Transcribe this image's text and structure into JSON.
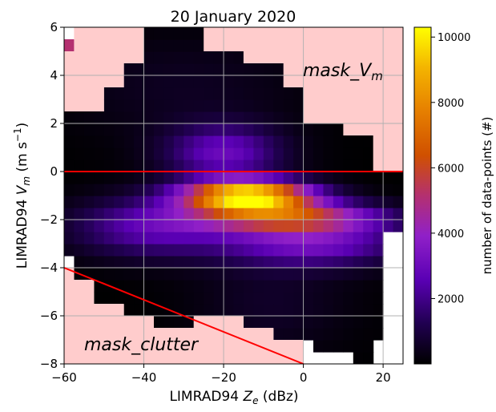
{
  "chart_data": {
    "type": "heatmap",
    "title": "20 January 2020",
    "xlabel_main": "LIMRAD94 ",
    "xlabel_sym": "Z",
    "xlabel_sub": "e",
    "xlabel_unit": " (dBz)",
    "ylabel_main": "LIMRAD94 ",
    "ylabel_sym": "V",
    "ylabel_sub": "m",
    "ylabel_unit_open": " (m s",
    "ylabel_unit_sup": "−1",
    "ylabel_unit_close": ")",
    "xlim": [
      -60,
      25
    ],
    "ylim": [
      -8,
      6
    ],
    "xticks": [
      -60,
      -40,
      -20,
      0,
      20
    ],
    "xtick_labels": [
      "−60",
      "−40",
      "−20",
      "0",
      "20"
    ],
    "yticks": [
      -8,
      -6,
      -4,
      -2,
      0,
      2,
      4,
      6
    ],
    "ytick_labels": [
      "−8",
      "−6",
      "−4",
      "−2",
      "0",
      "2",
      "4",
      "6"
    ],
    "grid": true,
    "x_bin_start": -60,
    "x_bin_width": 2.5,
    "y_bin_start": -8,
    "y_bin_width": 0.5,
    "colorbar": {
      "label": "number of data-points (#)",
      "range": [
        0,
        10300
      ],
      "ticks": [
        2000,
        4000,
        6000,
        8000,
        10000
      ],
      "tick_labels": [
        "2000",
        "4000",
        "6000",
        "8000",
        "10000"
      ],
      "colormap": "gnuplot"
    },
    "masks": [
      {
        "name": "mask_Vm",
        "label_main": "mask_",
        "label_sym": "V",
        "label_sub": "m",
        "color": "#ffcccc"
      },
      {
        "name": "mask_clutter",
        "label": "mask_clutter",
        "color": "#ffcccc"
      }
    ],
    "lines": [
      {
        "name": "mask_Vm boundary",
        "x": [
          -60,
          25
        ],
        "y": [
          0,
          0
        ],
        "color": "#ff0000"
      },
      {
        "name": "clutter boundary",
        "x": [
          -60,
          0
        ],
        "y": [
          -4,
          -8
        ],
        "color": "#ff0000"
      }
    ]
  }
}
